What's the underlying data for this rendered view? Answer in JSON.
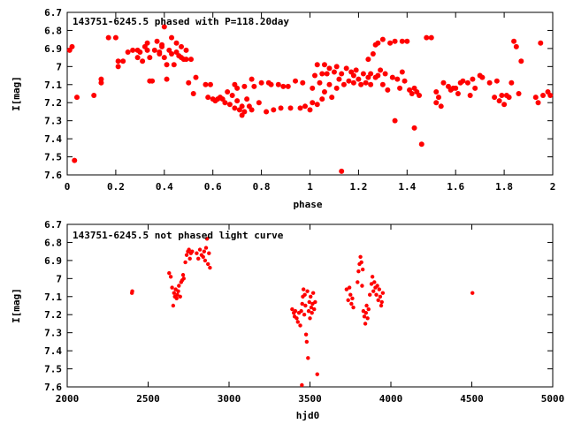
{
  "colors": {
    "marker": "#ff0000",
    "axis": "#000000",
    "background": "#ffffff"
  },
  "chart_data": [
    {
      "type": "scatter",
      "title": "143751-6245.5 phased with P=118.20day",
      "xlabel": "phase",
      "ylabel": "I[mag]",
      "xlim": [
        0,
        2
      ],
      "ylim": [
        7.6,
        6.7
      ],
      "y_inverted": true,
      "grid": false,
      "marker": "filled-circle",
      "xticks": [
        "0",
        "0.2",
        "0.4",
        "0.6",
        "0.8",
        "1",
        "1.2",
        "1.4",
        "1.6",
        "1.8",
        "2"
      ],
      "yticks": [
        "6.7",
        "6.8",
        "6.9",
        "7",
        "7.1",
        "7.2",
        "7.3",
        "7.4",
        "7.5",
        "7.6"
      ],
      "points": [
        [
          0.01,
          6.91
        ],
        [
          0.02,
          6.89
        ],
        [
          0.03,
          7.52
        ],
        [
          0.04,
          7.17
        ],
        [
          0.11,
          7.16
        ],
        [
          0.14,
          7.09
        ],
        [
          0.14,
          7.07
        ],
        [
          0.17,
          6.84
        ],
        [
          0.2,
          6.84
        ],
        [
          0.21,
          6.97
        ],
        [
          0.21,
          7.0
        ],
        [
          0.23,
          6.97
        ],
        [
          0.25,
          6.92
        ],
        [
          0.27,
          6.91
        ],
        [
          0.29,
          6.95
        ],
        [
          0.29,
          6.91
        ],
        [
          0.3,
          6.92
        ],
        [
          0.31,
          6.97
        ],
        [
          0.32,
          6.89
        ],
        [
          0.33,
          6.91
        ],
        [
          0.33,
          6.87
        ],
        [
          0.34,
          6.95
        ],
        [
          0.34,
          7.08
        ],
        [
          0.35,
          7.08
        ],
        [
          0.36,
          6.91
        ],
        [
          0.37,
          6.86
        ],
        [
          0.38,
          6.93
        ],
        [
          0.38,
          6.92
        ],
        [
          0.39,
          6.89
        ],
        [
          0.39,
          6.88
        ],
        [
          0.4,
          6.78
        ],
        [
          0.4,
          6.95
        ],
        [
          0.41,
          6.99
        ],
        [
          0.41,
          7.07
        ],
        [
          0.42,
          6.91
        ],
        [
          0.43,
          6.84
        ],
        [
          0.43,
          6.93
        ],
        [
          0.44,
          6.99
        ],
        [
          0.45,
          6.92
        ],
        [
          0.45,
          6.87
        ],
        [
          0.46,
          6.94
        ],
        [
          0.47,
          6.95
        ],
        [
          0.47,
          6.89
        ],
        [
          0.48,
          6.96
        ],
        [
          0.49,
          6.96
        ],
        [
          0.49,
          6.91
        ],
        [
          0.5,
          7.09
        ],
        [
          0.51,
          6.96
        ],
        [
          0.52,
          7.15
        ],
        [
          0.53,
          7.06
        ],
        [
          0.57,
          7.1
        ],
        [
          0.58,
          7.17
        ],
        [
          0.59,
          7.1
        ],
        [
          0.6,
          7.18
        ],
        [
          0.61,
          7.19
        ],
        [
          0.62,
          7.18
        ],
        [
          0.63,
          7.17
        ],
        [
          0.64,
          7.18
        ],
        [
          0.65,
          7.2
        ],
        [
          0.66,
          7.14
        ],
        [
          0.67,
          7.21
        ],
        [
          0.68,
          7.16
        ],
        [
          0.69,
          7.1
        ],
        [
          0.69,
          7.23
        ],
        [
          0.7,
          7.19
        ],
        [
          0.7,
          7.12
        ],
        [
          0.71,
          7.24
        ],
        [
          0.72,
          7.27
        ],
        [
          0.72,
          7.22
        ],
        [
          0.73,
          7.11
        ],
        [
          0.73,
          7.25
        ],
        [
          0.74,
          7.18
        ],
        [
          0.75,
          7.22
        ],
        [
          0.76,
          7.24
        ],
        [
          0.76,
          7.07
        ],
        [
          0.77,
          7.11
        ],
        [
          0.79,
          7.2
        ],
        [
          0.8,
          7.09
        ],
        [
          0.82,
          7.25
        ],
        [
          0.83,
          7.09
        ],
        [
          0.84,
          7.1
        ],
        [
          0.85,
          7.24
        ],
        [
          0.87,
          7.1
        ],
        [
          0.88,
          7.23
        ],
        [
          0.89,
          7.11
        ],
        [
          0.91,
          7.11
        ],
        [
          0.92,
          7.23
        ],
        [
          0.94,
          7.08
        ],
        [
          0.96,
          7.23
        ],
        [
          0.97,
          7.09
        ],
        [
          0.98,
          7.22
        ],
        [
          1.0,
          7.24
        ],
        [
          1.01,
          7.2
        ],
        [
          1.01,
          7.12
        ],
        [
          1.02,
          7.05
        ],
        [
          1.03,
          7.21
        ],
        [
          1.03,
          6.99
        ],
        [
          1.04,
          7.09
        ],
        [
          1.05,
          7.18
        ],
        [
          1.05,
          7.04
        ],
        [
          1.06,
          7.14
        ],
        [
          1.06,
          6.99
        ],
        [
          1.07,
          7.04
        ],
        [
          1.08,
          7.1
        ],
        [
          1.08,
          7.01
        ],
        [
          1.09,
          7.17
        ],
        [
          1.1,
          7.03
        ],
        [
          1.11,
          7.12
        ],
        [
          1.11,
          7.0
        ],
        [
          1.12,
          7.07
        ],
        [
          1.13,
          7.58
        ],
        [
          1.13,
          7.04
        ],
        [
          1.14,
          7.1
        ],
        [
          1.15,
          7.01
        ],
        [
          1.16,
          7.08
        ],
        [
          1.17,
          7.03
        ],
        [
          1.18,
          7.09
        ],
        [
          1.18,
          7.05
        ],
        [
          1.19,
          7.02
        ],
        [
          1.2,
          7.07
        ],
        [
          1.21,
          7.1
        ],
        [
          1.22,
          7.04
        ],
        [
          1.23,
          7.09
        ],
        [
          1.24,
          7.06
        ],
        [
          1.24,
          6.96
        ],
        [
          1.25,
          7.1
        ],
        [
          1.25,
          7.04
        ],
        [
          1.26,
          6.93
        ],
        [
          1.27,
          7.06
        ],
        [
          1.27,
          6.88
        ],
        [
          1.28,
          7.05
        ],
        [
          1.28,
          6.87
        ],
        [
          1.29,
          7.02
        ],
        [
          1.3,
          7.1
        ],
        [
          1.3,
          6.85
        ],
        [
          1.31,
          7.04
        ],
        [
          1.32,
          7.13
        ],
        [
          1.33,
          6.87
        ],
        [
          1.34,
          7.06
        ],
        [
          1.35,
          7.3
        ],
        [
          1.35,
          6.86
        ],
        [
          1.36,
          7.07
        ],
        [
          1.37,
          7.12
        ],
        [
          1.38,
          6.86
        ],
        [
          1.38,
          7.03
        ],
        [
          1.39,
          7.08
        ],
        [
          1.4,
          6.86
        ],
        [
          1.41,
          7.13
        ],
        [
          1.42,
          7.15
        ],
        [
          1.43,
          7.34
        ],
        [
          1.43,
          7.12
        ],
        [
          1.44,
          7.14
        ],
        [
          1.45,
          7.16
        ],
        [
          1.46,
          7.43
        ],
        [
          1.48,
          6.84
        ],
        [
          1.5,
          6.84
        ],
        [
          1.52,
          7.14
        ],
        [
          1.52,
          7.2
        ],
        [
          1.53,
          7.17
        ],
        [
          1.54,
          7.22
        ],
        [
          1.55,
          7.09
        ],
        [
          1.57,
          7.11
        ],
        [
          1.58,
          7.13
        ],
        [
          1.59,
          7.12
        ],
        [
          1.6,
          7.12
        ],
        [
          1.61,
          7.15
        ],
        [
          1.62,
          7.09
        ],
        [
          1.63,
          7.08
        ],
        [
          1.65,
          7.09
        ],
        [
          1.66,
          7.16
        ],
        [
          1.67,
          7.07
        ],
        [
          1.68,
          7.12
        ],
        [
          1.7,
          7.05
        ],
        [
          1.71,
          7.06
        ],
        [
          1.74,
          7.09
        ],
        [
          1.76,
          7.17
        ],
        [
          1.77,
          7.08
        ],
        [
          1.78,
          7.19
        ],
        [
          1.79,
          7.16
        ],
        [
          1.8,
          7.21
        ],
        [
          1.81,
          7.16
        ],
        [
          1.82,
          7.17
        ],
        [
          1.83,
          7.09
        ],
        [
          1.84,
          6.86
        ],
        [
          1.85,
          6.89
        ],
        [
          1.86,
          7.15
        ],
        [
          1.87,
          6.97
        ],
        [
          1.93,
          7.17
        ],
        [
          1.94,
          7.2
        ],
        [
          1.95,
          6.87
        ],
        [
          1.96,
          7.16
        ],
        [
          1.98,
          7.14
        ],
        [
          1.99,
          7.16
        ]
      ]
    },
    {
      "type": "scatter",
      "title": "143751-6245.5 not phased light curve",
      "xlabel": "hjd0",
      "ylabel": "I[mag]",
      "xlim": [
        2000,
        5000
      ],
      "ylim": [
        7.6,
        6.7
      ],
      "y_inverted": true,
      "grid": false,
      "marker": "filled-circle",
      "xticks": [
        "2000",
        "2500",
        "3000",
        "3500",
        "4000",
        "4500",
        "5000"
      ],
      "yticks": [
        "6.7",
        "6.8",
        "6.9",
        "7",
        "7.1",
        "7.2",
        "7.3",
        "7.4",
        "7.5",
        "7.6"
      ],
      "points": [
        [
          2400,
          7.08
        ],
        [
          2402,
          7.07
        ],
        [
          2630,
          6.97
        ],
        [
          2640,
          6.99
        ],
        [
          2648,
          7.05
        ],
        [
          2655,
          7.15
        ],
        [
          2660,
          7.08
        ],
        [
          2665,
          7.1
        ],
        [
          2670,
          7.06
        ],
        [
          2676,
          7.11
        ],
        [
          2680,
          7.09
        ],
        [
          2686,
          7.07
        ],
        [
          2690,
          7.04
        ],
        [
          2698,
          7.1
        ],
        [
          2704,
          7.02
        ],
        [
          2710,
          7.01
        ],
        [
          2716,
          6.98
        ],
        [
          2720,
          7.0
        ],
        [
          2730,
          6.91
        ],
        [
          2738,
          6.87
        ],
        [
          2746,
          6.85
        ],
        [
          2752,
          6.84
        ],
        [
          2758,
          6.89
        ],
        [
          2764,
          6.86
        ],
        [
          2772,
          6.85
        ],
        [
          2800,
          6.86
        ],
        [
          2810,
          6.89
        ],
        [
          2820,
          6.84
        ],
        [
          2830,
          6.87
        ],
        [
          2840,
          6.88
        ],
        [
          2846,
          6.85
        ],
        [
          2852,
          6.9
        ],
        [
          2858,
          6.83
        ],
        [
          2864,
          6.78
        ],
        [
          2870,
          6.92
        ],
        [
          2876,
          6.86
        ],
        [
          2882,
          6.94
        ],
        [
          3390,
          7.17
        ],
        [
          3400,
          7.19
        ],
        [
          3405,
          7.21
        ],
        [
          3410,
          7.18
        ],
        [
          3418,
          7.22
        ],
        [
          3425,
          7.24
        ],
        [
          3432,
          7.19
        ],
        [
          3440,
          7.26
        ],
        [
          3446,
          7.18
        ],
        [
          3452,
          7.14
        ],
        [
          3456,
          7.1
        ],
        [
          3460,
          7.06
        ],
        [
          3465,
          7.2
        ],
        [
          3468,
          7.09
        ],
        [
          3472,
          7.15
        ],
        [
          3476,
          7.31
        ],
        [
          3480,
          7.35
        ],
        [
          3484,
          7.07
        ],
        [
          3488,
          7.44
        ],
        [
          3492,
          7.18
        ],
        [
          3496,
          7.13
        ],
        [
          3500,
          7.22
        ],
        [
          3504,
          7.1
        ],
        [
          3508,
          7.16
        ],
        [
          3512,
          7.19
        ],
        [
          3516,
          7.14
        ],
        [
          3520,
          7.08
        ],
        [
          3526,
          7.17
        ],
        [
          3532,
          7.13
        ],
        [
          3450,
          7.59
        ],
        [
          3545,
          7.53
        ],
        [
          3726,
          7.06
        ],
        [
          3736,
          7.12
        ],
        [
          3744,
          7.05
        ],
        [
          3750,
          7.09
        ],
        [
          3756,
          7.14
        ],
        [
          3762,
          7.11
        ],
        [
          3768,
          7.16
        ],
        [
          3794,
          7.02
        ],
        [
          3800,
          6.96
        ],
        [
          3806,
          6.92
        ],
        [
          3812,
          6.88
        ],
        [
          3818,
          6.91
        ],
        [
          3822,
          7.04
        ],
        [
          3826,
          6.95
        ],
        [
          3830,
          7.18
        ],
        [
          3836,
          7.21
        ],
        [
          3842,
          7.25
        ],
        [
          3846,
          7.19
        ],
        [
          3850,
          7.15
        ],
        [
          3856,
          7.22
        ],
        [
          3862,
          7.17
        ],
        [
          3870,
          7.09
        ],
        [
          3880,
          7.03
        ],
        [
          3886,
          6.99
        ],
        [
          3892,
          7.07
        ],
        [
          3898,
          7.02
        ],
        [
          3904,
          7.05
        ],
        [
          3910,
          7.09
        ],
        [
          3916,
          7.04
        ],
        [
          3922,
          7.12
        ],
        [
          3928,
          7.06
        ],
        [
          3934,
          7.1
        ],
        [
          3940,
          7.15
        ],
        [
          3944,
          7.13
        ],
        [
          3950,
          7.08
        ],
        [
          4504,
          7.08
        ]
      ]
    }
  ]
}
